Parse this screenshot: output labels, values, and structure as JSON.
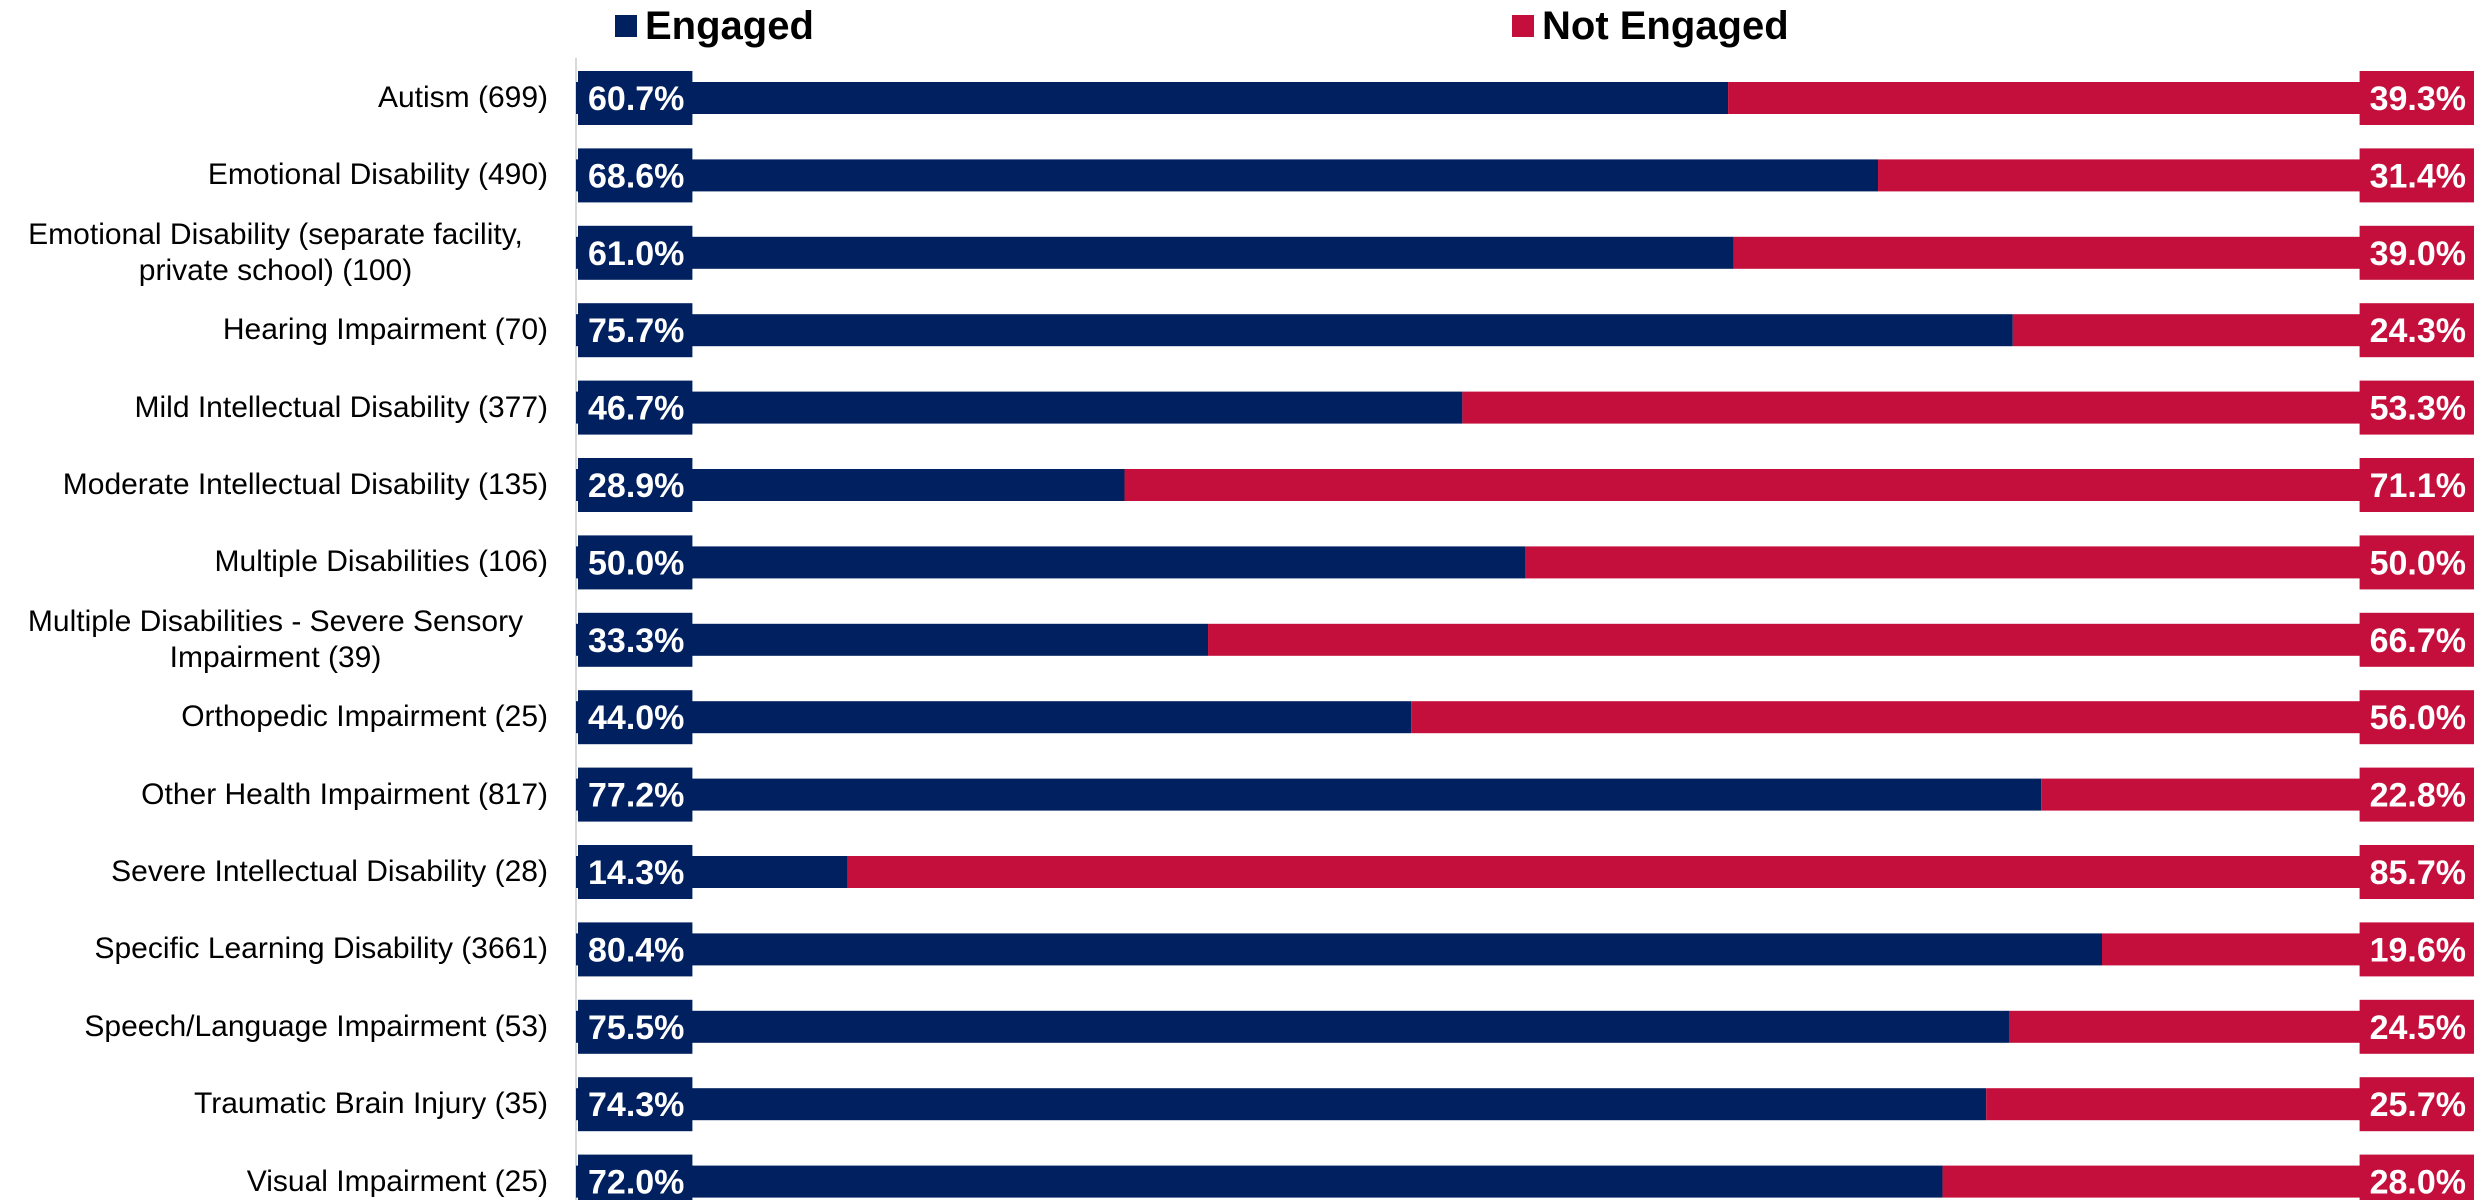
{
  "chart_data": {
    "type": "stacked_bar_horizontal",
    "categories": [
      "Autism (699)",
      "Emotional Disability (490)",
      "Emotional Disability (separate facility, private school) (100)",
      "Hearing Impairment (70)",
      "Mild Intellectual Disability (377)",
      "Moderate Intellectual Disability (135)",
      "Multiple Disabilities (106)",
      "Multiple Disabilities - Severe Sensory Impairment (39)",
      "Orthopedic Impairment (25)",
      "Other Health Impairment (817)",
      "Severe Intellectual Disability (28)",
      "Specific Learning Disability (3661)",
      "Speech/Language Impairment (53)",
      "Traumatic Brain Injury (35)",
      "Visual Impairment (25)"
    ],
    "series": [
      {
        "name": "Engaged",
        "color": "#002060",
        "values": [
          60.7,
          68.6,
          61.0,
          75.7,
          46.7,
          28.9,
          50.0,
          33.3,
          44.0,
          77.2,
          14.3,
          80.4,
          75.5,
          74.3,
          72.0
        ],
        "value_labels": [
          "60.7%",
          "68.6%",
          "61.0%",
          "75.7%",
          "46.7%",
          "28.9%",
          "50.0%",
          "33.3%",
          "44.0%",
          "77.2%",
          "14.3%",
          "80.4%",
          "75.5%",
          "74.3%",
          "72.0%"
        ]
      },
      {
        "name": "Not Engaged",
        "color": "#c40f3c",
        "values": [
          39.3,
          31.4,
          39.0,
          24.3,
          53.3,
          71.1,
          50.0,
          66.7,
          56.0,
          22.8,
          85.7,
          19.6,
          24.5,
          25.7,
          28.0
        ],
        "value_labels": [
          "39.3%",
          "31.4%",
          "39.0%",
          "24.3%",
          "53.3%",
          "71.1%",
          "50.0%",
          "66.7%",
          "56.0%",
          "22.8%",
          "85.7%",
          "19.6%",
          "24.5%",
          "25.7%",
          "28.0%"
        ]
      }
    ],
    "xlim": [
      0,
      100
    ],
    "legend": "top"
  }
}
